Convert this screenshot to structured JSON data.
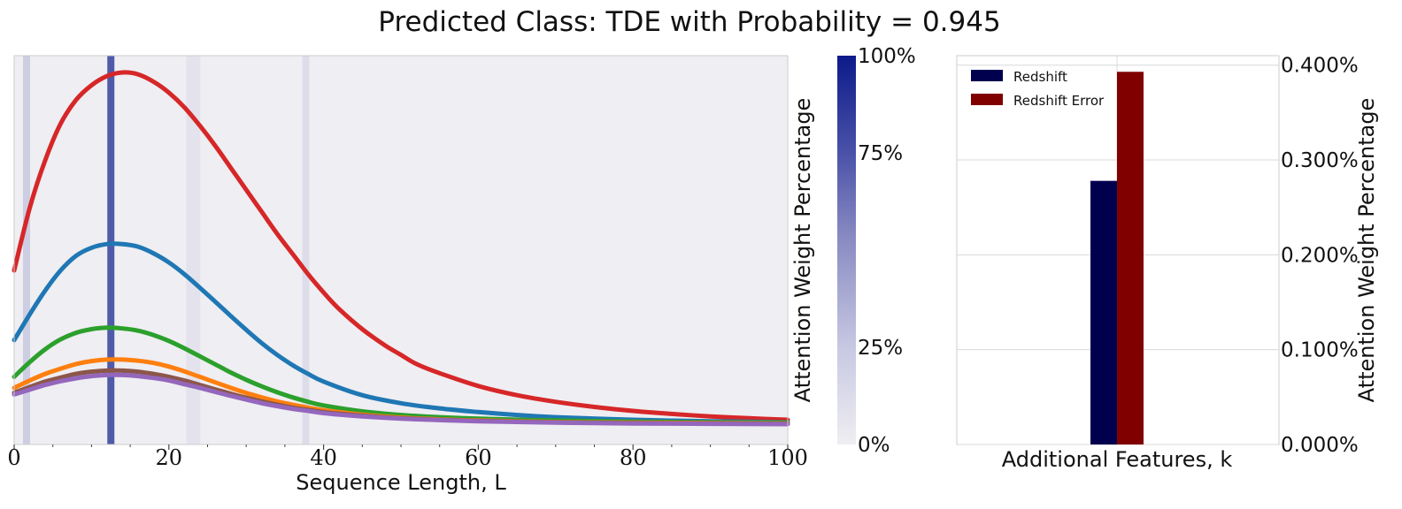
{
  "title": "Predicted Class: TDE with Probability = 0.945",
  "colors": {
    "panel_bg": "#efeef2",
    "attention_dark": "#0c1a8a",
    "attention_light": "#efeef2",
    "redshift": "#00004e",
    "redshift_error": "#800000",
    "grid": "#d8d8d8"
  },
  "chart_data": [
    {
      "type": "line",
      "xlabel": "Sequence Length, L",
      "ylabel": "",
      "xlim": [
        0,
        100
      ],
      "x_ticks": [
        "0",
        "20",
        "40",
        "60",
        "80",
        "100"
      ],
      "grid": false,
      "y_axis_labels_shown": false,
      "series": [
        {
          "color": "#d62728",
          "x": [
            0,
            2,
            4,
            6,
            8,
            10,
            12,
            14,
            16,
            18,
            20,
            22,
            24,
            26,
            28,
            30,
            32,
            34,
            36,
            38,
            40,
            42,
            45,
            48,
            50,
            52,
            55,
            60,
            65,
            70,
            75,
            80,
            85,
            90,
            95,
            100
          ],
          "y": [
            0.46,
            0.63,
            0.76,
            0.86,
            0.925,
            0.965,
            0.99,
            1.0,
            0.995,
            0.975,
            0.945,
            0.905,
            0.855,
            0.8,
            0.74,
            0.68,
            0.62,
            0.56,
            0.505,
            0.45,
            0.4,
            0.355,
            0.3,
            0.255,
            0.23,
            0.205,
            0.18,
            0.145,
            0.12,
            0.102,
            0.088,
            0.077,
            0.069,
            0.062,
            0.057,
            0.053
          ]
        },
        {
          "color": "#1f77b4",
          "x": [
            0,
            2,
            4,
            6,
            8,
            10,
            12,
            14,
            16,
            18,
            20,
            22,
            24,
            26,
            28,
            30,
            32,
            34,
            36,
            38,
            40,
            45,
            50,
            55,
            60,
            65,
            70,
            80,
            90,
            100
          ],
          "y": [
            0.27,
            0.34,
            0.405,
            0.46,
            0.5,
            0.522,
            0.532,
            0.532,
            0.525,
            0.507,
            0.482,
            0.45,
            0.413,
            0.375,
            0.336,
            0.298,
            0.262,
            0.23,
            0.202,
            0.178,
            0.157,
            0.12,
            0.098,
            0.084,
            0.074,
            0.066,
            0.06,
            0.053,
            0.049,
            0.046
          ]
        },
        {
          "color": "#2ca02c",
          "x": [
            0,
            2,
            4,
            6,
            8,
            10,
            12,
            14,
            16,
            18,
            20,
            22,
            24,
            26,
            28,
            30,
            32,
            34,
            36,
            38,
            40,
            45,
            50,
            55,
            60,
            70,
            80,
            90,
            100
          ],
          "y": [
            0.17,
            0.21,
            0.245,
            0.272,
            0.29,
            0.3,
            0.304,
            0.302,
            0.296,
            0.284,
            0.268,
            0.248,
            0.226,
            0.204,
            0.182,
            0.162,
            0.144,
            0.128,
            0.114,
            0.102,
            0.092,
            0.076,
            0.066,
            0.06,
            0.056,
            0.051,
            0.048,
            0.046,
            0.045
          ]
        },
        {
          "color": "#ff7f0e",
          "x": [
            0,
            2,
            4,
            6,
            8,
            10,
            12,
            14,
            16,
            18,
            20,
            22,
            24,
            26,
            28,
            30,
            32,
            34,
            36,
            38,
            40,
            45,
            50,
            55,
            60,
            70,
            80,
            90,
            100
          ],
          "y": [
            0.14,
            0.16,
            0.178,
            0.192,
            0.205,
            0.213,
            0.217,
            0.217,
            0.214,
            0.208,
            0.198,
            0.185,
            0.17,
            0.155,
            0.14,
            0.126,
            0.114,
            0.103,
            0.094,
            0.086,
            0.079,
            0.067,
            0.059,
            0.054,
            0.051,
            0.047,
            0.045,
            0.044,
            0.043
          ]
        },
        {
          "color": "#8c564b",
          "x": [
            0,
            2,
            4,
            6,
            8,
            10,
            12,
            14,
            16,
            18,
            20,
            22,
            24,
            26,
            28,
            30,
            32,
            34,
            36,
            38,
            40,
            45,
            50,
            55,
            60,
            70,
            80,
            90,
            100
          ],
          "y": [
            0.127,
            0.142,
            0.157,
            0.168,
            0.178,
            0.184,
            0.187,
            0.187,
            0.184,
            0.178,
            0.17,
            0.16,
            0.148,
            0.136,
            0.124,
            0.113,
            0.103,
            0.094,
            0.086,
            0.08,
            0.074,
            0.064,
            0.057,
            0.053,
            0.05,
            0.046,
            0.044,
            0.043,
            0.042
          ]
        },
        {
          "color": "#9467bd",
          "x": [
            0,
            2,
            4,
            6,
            8,
            10,
            12,
            14,
            16,
            18,
            20,
            22,
            24,
            26,
            28,
            30,
            32,
            34,
            36,
            38,
            40,
            45,
            50,
            55,
            60,
            70,
            80,
            90,
            100
          ],
          "y": [
            0.122,
            0.135,
            0.148,
            0.158,
            0.166,
            0.172,
            0.175,
            0.175,
            0.172,
            0.167,
            0.16,
            0.15,
            0.14,
            0.129,
            0.118,
            0.108,
            0.098,
            0.09,
            0.083,
            0.077,
            0.071,
            0.062,
            0.056,
            0.052,
            0.049,
            0.045,
            0.043,
            0.042,
            0.041
          ]
        }
      ],
      "attention_bands": [
        {
          "x": 1.6,
          "weight": 0.15
        },
        {
          "x": 12.5,
          "weight": 0.7
        },
        {
          "x": 22.7,
          "weight": 0.05
        },
        {
          "x": 23.6,
          "weight": 0.05
        },
        {
          "x": 37.7,
          "weight": 0.08
        }
      ],
      "colorbar": {
        "label": "Attention Weight Percentage",
        "ticks": [
          "100%",
          "75%",
          "25%",
          "0%"
        ],
        "tick_values": [
          1.0,
          0.75,
          0.25,
          0.0
        ]
      }
    },
    {
      "type": "bar",
      "xlabel": "Additional Features, k",
      "ylabel": "Attention Weight Percentage",
      "ylim": [
        0.0,
        0.41
      ],
      "y_ticks": [
        "0.000%",
        "0.100%",
        "0.200%",
        "0.300%",
        "0.400%"
      ],
      "y_tick_values": [
        0.0,
        0.1,
        0.2,
        0.3,
        0.4
      ],
      "grid": true,
      "legend_position": "top-left",
      "series": [
        {
          "name": "Redshift",
          "values": [
            0.278
          ],
          "color": "#00004e"
        },
        {
          "name": "Redshift Error",
          "values": [
            0.393
          ],
          "color": "#800000"
        }
      ]
    }
  ]
}
